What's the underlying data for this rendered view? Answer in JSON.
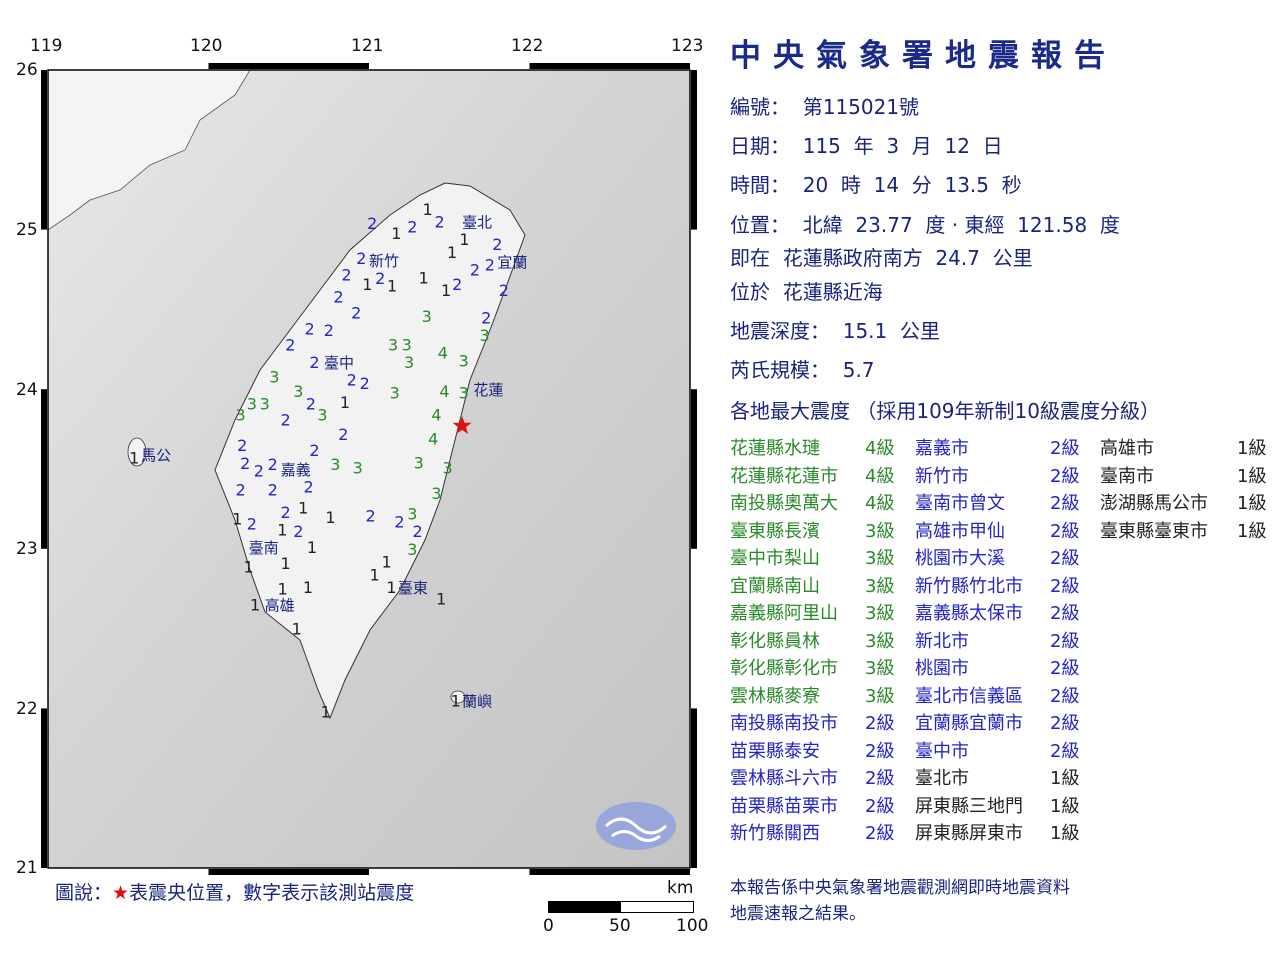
{
  "report": {
    "title": "中央氣象署地震報告",
    "number": "編號：  第115021號",
    "date": "日期：  115  年  3  月  12  日",
    "time": "時間：  20  時  14  分  13.5  秒",
    "location": "位置：  北緯  23.77  度 · 東經  121.58  度",
    "relative": "即在  花蓮縣政府南方  24.7  公里",
    "region": "位於  花蓮縣近海",
    "depth": "地震深度：  15.1  公里",
    "magnitude": "芮氏規模：  5.7",
    "intensity_header": "各地最大震度 （採用109年新制10級震度分級）"
  },
  "colors": {
    "title": "#1a2a8a",
    "level4": "#2a8a2a",
    "level3": "#2a8a2a",
    "level2": "#2323c8",
    "level1": "#222222",
    "epicenter": "#e01010"
  },
  "intensity_table": [
    [
      {
        "name": "花蓮縣水璉",
        "level": "4級",
        "n": 4
      },
      {
        "name": "花蓮縣花蓮市",
        "level": "4級",
        "n": 4
      },
      {
        "name": "南投縣奧萬大",
        "level": "4級",
        "n": 4
      },
      {
        "name": "臺東縣長濱",
        "level": "3級",
        "n": 3
      },
      {
        "name": "臺中市梨山",
        "level": "3級",
        "n": 3
      },
      {
        "name": "宜蘭縣南山",
        "level": "3級",
        "n": 3
      },
      {
        "name": "嘉義縣阿里山",
        "level": "3級",
        "n": 3
      },
      {
        "name": "彰化縣員林",
        "level": "3級",
        "n": 3
      },
      {
        "name": "彰化縣彰化市",
        "level": "3級",
        "n": 3
      },
      {
        "name": "雲林縣麥寮",
        "level": "3級",
        "n": 3
      },
      {
        "name": "南投縣南投市",
        "level": "2級",
        "n": 2
      },
      {
        "name": "苗栗縣泰安",
        "level": "2級",
        "n": 2
      },
      {
        "name": "雲林縣斗六市",
        "level": "2級",
        "n": 2
      },
      {
        "name": "苗栗縣苗栗市",
        "level": "2級",
        "n": 2
      },
      {
        "name": "新竹縣關西",
        "level": "2級",
        "n": 2
      }
    ],
    [
      {
        "name": "嘉義市",
        "level": "2級",
        "n": 2
      },
      {
        "name": "新竹市",
        "level": "2級",
        "n": 2
      },
      {
        "name": "臺南市曾文",
        "level": "2級",
        "n": 2
      },
      {
        "name": "高雄市甲仙",
        "level": "2級",
        "n": 2
      },
      {
        "name": "桃園市大溪",
        "level": "2級",
        "n": 2
      },
      {
        "name": "新竹縣竹北市",
        "level": "2級",
        "n": 2
      },
      {
        "name": "嘉義縣太保市",
        "level": "2級",
        "n": 2
      },
      {
        "name": "新北市",
        "level": "2級",
        "n": 2
      },
      {
        "name": "桃園市",
        "level": "2級",
        "n": 2
      },
      {
        "name": "臺北市信義區",
        "level": "2級",
        "n": 2
      },
      {
        "name": "宜蘭縣宜蘭市",
        "level": "2級",
        "n": 2
      },
      {
        "name": "臺中市",
        "level": "2級",
        "n": 2
      },
      {
        "name": "臺北市",
        "level": "1級",
        "n": 1
      },
      {
        "name": "屏東縣三地門",
        "level": "1級",
        "n": 1
      },
      {
        "name": "屏東縣屏東市",
        "level": "1級",
        "n": 1
      }
    ],
    [
      {
        "name": "高雄市",
        "level": "1級",
        "n": 1
      },
      {
        "name": "臺南市",
        "level": "1級",
        "n": 1
      },
      {
        "name": "澎湖縣馬公市",
        "level": "1級",
        "n": 1
      },
      {
        "name": "臺東縣臺東市",
        "level": "1級",
        "n": 1
      }
    ]
  ],
  "map": {
    "lon_ticks": [
      "119",
      "120",
      "121",
      "122",
      "123"
    ],
    "lat_ticks": [
      "26",
      "25",
      "24",
      "23",
      "22",
      "21"
    ],
    "epicenter": {
      "lon": 121.58,
      "lat": 23.77,
      "icon": "star-icon"
    },
    "cities": [
      {
        "name": "臺北",
        "lon": 121.58,
        "lat": 25.05
      },
      {
        "name": "新竹",
        "lon": 121.0,
        "lat": 24.81
      },
      {
        "name": "宜蘭",
        "lon": 121.8,
        "lat": 24.8
      },
      {
        "name": "臺中",
        "lon": 120.72,
        "lat": 24.17
      },
      {
        "name": "花蓮",
        "lon": 121.65,
        "lat": 24.0
      },
      {
        "name": "馬公",
        "lon": 119.58,
        "lat": 23.59
      },
      {
        "name": "嘉義",
        "lon": 120.45,
        "lat": 23.5
      },
      {
        "name": "臺南",
        "lon": 120.25,
        "lat": 23.01
      },
      {
        "name": "臺東",
        "lon": 121.18,
        "lat": 22.76
      },
      {
        "name": "高雄",
        "lon": 120.35,
        "lat": 22.65
      },
      {
        "name": "蘭嶼",
        "lon": 121.58,
        "lat": 22.05
      }
    ],
    "stations": [
      [
        121.46,
        24.23,
        4
      ],
      [
        121.47,
        23.99,
        4
      ],
      [
        121.42,
        23.84,
        4
      ],
      [
        121.4,
        23.69,
        4
      ],
      [
        121.59,
        24.18,
        3
      ],
      [
        121.59,
        23.98,
        3
      ],
      [
        121.31,
        23.54,
        3
      ],
      [
        121.49,
        23.51,
        3
      ],
      [
        121.42,
        23.35,
        3
      ],
      [
        121.27,
        23.22,
        3
      ],
      [
        121.27,
        23.0,
        3
      ],
      [
        121.16,
        23.98,
        3
      ],
      [
        121.25,
        24.17,
        3
      ],
      [
        121.15,
        24.28,
        3
      ],
      [
        121.21,
        24.28,
        3
      ],
      [
        121.36,
        24.46,
        3
      ],
      [
        121.72,
        24.34,
        3
      ],
      [
        120.41,
        24.08,
        3
      ],
      [
        120.56,
        23.99,
        3
      ],
      [
        120.71,
        23.84,
        3
      ],
      [
        120.35,
        23.91,
        3
      ],
      [
        120.27,
        23.91,
        3
      ],
      [
        120.2,
        23.84,
        3
      ],
      [
        120.79,
        23.53,
        3
      ],
      [
        120.93,
        23.51,
        3
      ],
      [
        121.02,
        25.04,
        2
      ],
      [
        121.27,
        25.02,
        2
      ],
      [
        121.44,
        25.05,
        2
      ],
      [
        121.8,
        24.91,
        2
      ],
      [
        121.79,
        24.8,
        2
      ],
      [
        121.66,
        24.75,
        2
      ],
      [
        121.55,
        24.66,
        2
      ],
      [
        121.84,
        24.62,
        2
      ],
      [
        121.73,
        24.45,
        2
      ],
      [
        120.99,
        24.84,
        2
      ],
      [
        121.07,
        24.76,
        2
      ],
      [
        120.86,
        24.72,
        2
      ],
      [
        120.81,
        24.58,
        2
      ],
      [
        120.92,
        24.48,
        2
      ],
      [
        120.63,
        24.38,
        2
      ],
      [
        120.75,
        24.37,
        2
      ],
      [
        120.51,
        24.28,
        2
      ],
      [
        120.66,
        24.17,
        2
      ],
      [
        120.88,
        24.08,
        2
      ],
      [
        120.93,
        24.04,
        2
      ],
      [
        120.65,
        23.93,
        2
      ],
      [
        120.48,
        23.81,
        2
      ],
      [
        120.84,
        23.72,
        2
      ],
      [
        120.21,
        23.65,
        2
      ],
      [
        120.66,
        23.62,
        2
      ],
      [
        120.21,
        23.55,
        2
      ],
      [
        120.27,
        23.49,
        2
      ],
      [
        120.4,
        23.53,
        2
      ],
      [
        120.58,
        23.46,
        2
      ],
      [
        120.2,
        23.37,
        2
      ],
      [
        120.4,
        23.37,
        2
      ],
      [
        120.27,
        23.16,
        2
      ],
      [
        120.48,
        23.23,
        2
      ],
      [
        120.56,
        23.11,
        2
      ],
      [
        121.01,
        23.21,
        2
      ],
      [
        121.19,
        23.17,
        2
      ],
      [
        121.29,
        23.13,
        2
      ],
      [
        121.17,
        24.98,
        1
      ],
      [
        121.39,
        25.13,
        1
      ],
      [
        121.57,
        24.98,
        1
      ],
      [
        121.53,
        24.88,
        1
      ],
      [
        121.34,
        24.7,
        1
      ],
      [
        121.48,
        24.62,
        1
      ],
      [
        120.99,
        24.66,
        1
      ],
      [
        121.1,
        24.65,
        1
      ],
      [
        120.85,
        23.92,
        1
      ],
      [
        120.59,
        23.26,
        1
      ],
      [
        120.76,
        23.2,
        1
      ],
      [
        120.18,
        23.19,
        1
      ],
      [
        120.51,
        23.21,
        1
      ],
      [
        120.62,
        23.01,
        1
      ],
      [
        120.25,
        22.89,
        1
      ],
      [
        120.48,
        22.91,
        1
      ],
      [
        121.11,
        22.92,
        1
      ],
      [
        121.06,
        22.84,
        1
      ],
      [
        121.14,
        22.76,
        1
      ],
      [
        120.48,
        22.74,
        1
      ],
      [
        120.62,
        22.76,
        1
      ],
      [
        120.29,
        22.65,
        1
      ],
      [
        120.55,
        22.5,
        1
      ],
      [
        121.45,
        22.69,
        1
      ],
      [
        120.73,
        21.98,
        1
      ],
      [
        121.54,
        22.05,
        1
      ],
      [
        119.55,
        23.59,
        1
      ]
    ],
    "logo": "cwa-logo"
  },
  "legend": {
    "prefix": "圖說：",
    "star": "★",
    "text": "表震央位置，數字表示該測站震度"
  },
  "scale": {
    "unit": "km",
    "labels": [
      "0",
      "50",
      "100"
    ]
  },
  "footer": {
    "line1": "本報告係中央氣象署地震觀測網即時地震資料",
    "line2": "地震速報之結果。"
  }
}
